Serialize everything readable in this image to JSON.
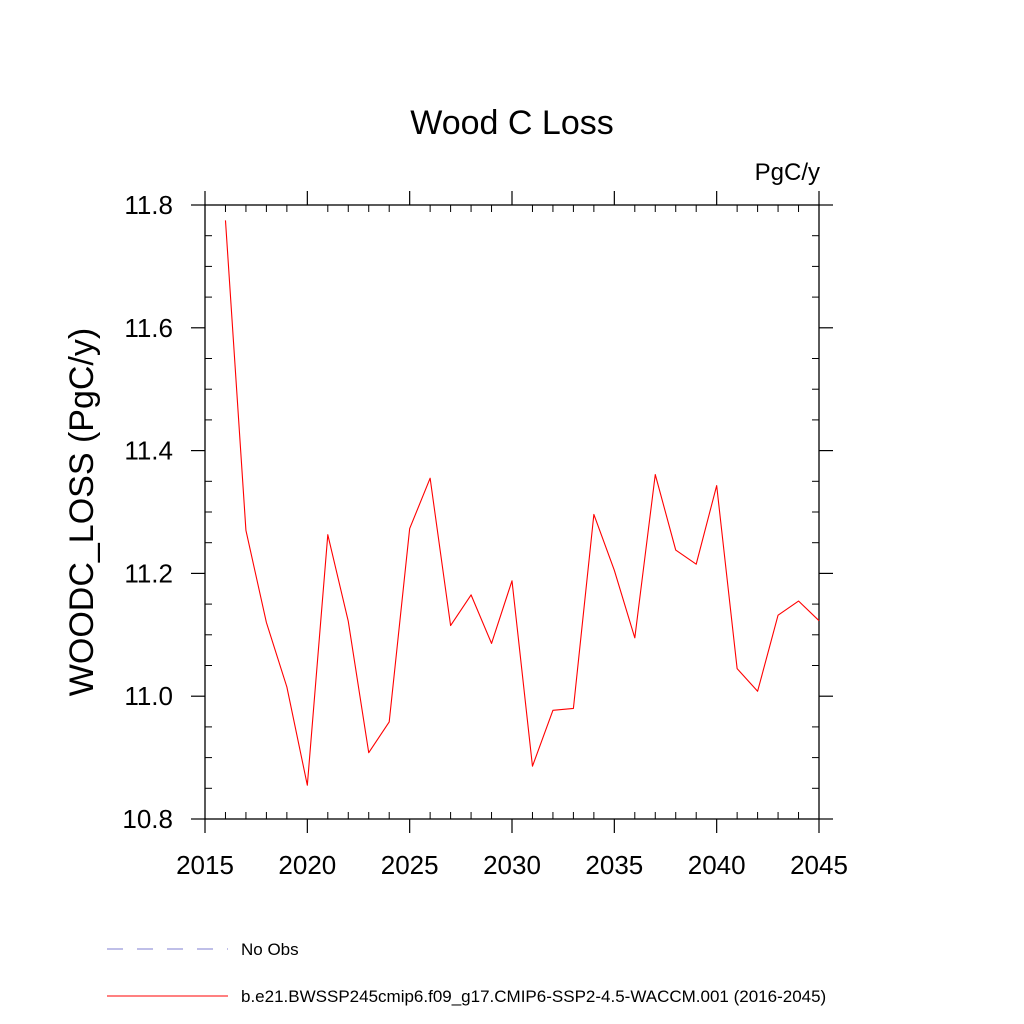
{
  "chart_data": {
    "type": "line",
    "title": "Wood C Loss",
    "units": "PgC/y",
    "xlabel": "",
    "ylabel": "WOODC_LOSS  (PgC/y)",
    "xlim": [
      2015,
      2045
    ],
    "ylim": [
      10.8,
      11.8
    ],
    "xticks": [
      2015,
      2020,
      2025,
      2030,
      2035,
      2040,
      2045
    ],
    "xtick_labels": [
      "2015",
      "2020",
      "2025",
      "2030",
      "2035",
      "2040",
      "2045"
    ],
    "yticks": [
      10.8,
      11.0,
      11.2,
      11.4,
      11.6,
      11.8
    ],
    "ytick_labels": [
      "10.8",
      "11.0",
      "11.2",
      "11.4",
      "11.6",
      "11.8"
    ],
    "x_minor_step": 1,
    "y_minor_step": 0.05,
    "series": [
      {
        "name": "b.e21.BWSSP245cmip6.f09_g17.CMIP6-SSP2-4.5-WACCM.001 (2016-2045)",
        "color": "#ff0000",
        "style": "solid",
        "x": [
          2016,
          2017,
          2018,
          2019,
          2020,
          2021,
          2022,
          2023,
          2024,
          2025,
          2026,
          2027,
          2028,
          2029,
          2030,
          2031,
          2032,
          2033,
          2034,
          2035,
          2036,
          2037,
          2038,
          2039,
          2040,
          2041,
          2042,
          2043,
          2044,
          2045
        ],
        "values": [
          11.775,
          11.27,
          11.12,
          11.015,
          10.855,
          11.263,
          11.122,
          10.908,
          10.958,
          11.273,
          11.355,
          11.115,
          11.165,
          11.086,
          11.188,
          10.886,
          10.977,
          10.98,
          11.296,
          11.205,
          11.095,
          11.361,
          11.238,
          11.215,
          11.343,
          11.045,
          11.008,
          11.132,
          11.155,
          11.123
        ]
      }
    ],
    "legend": {
      "placement": "bottom",
      "entries": [
        {
          "label": "No Obs",
          "color": "#7f7fd0",
          "style": "dashed"
        },
        {
          "label": "b.e21.BWSSP245cmip6.f09_g17.CMIP6-SSP2-4.5-WACCM.001 (2016-2045)",
          "color": "#ff0000",
          "style": "solid"
        }
      ]
    }
  }
}
